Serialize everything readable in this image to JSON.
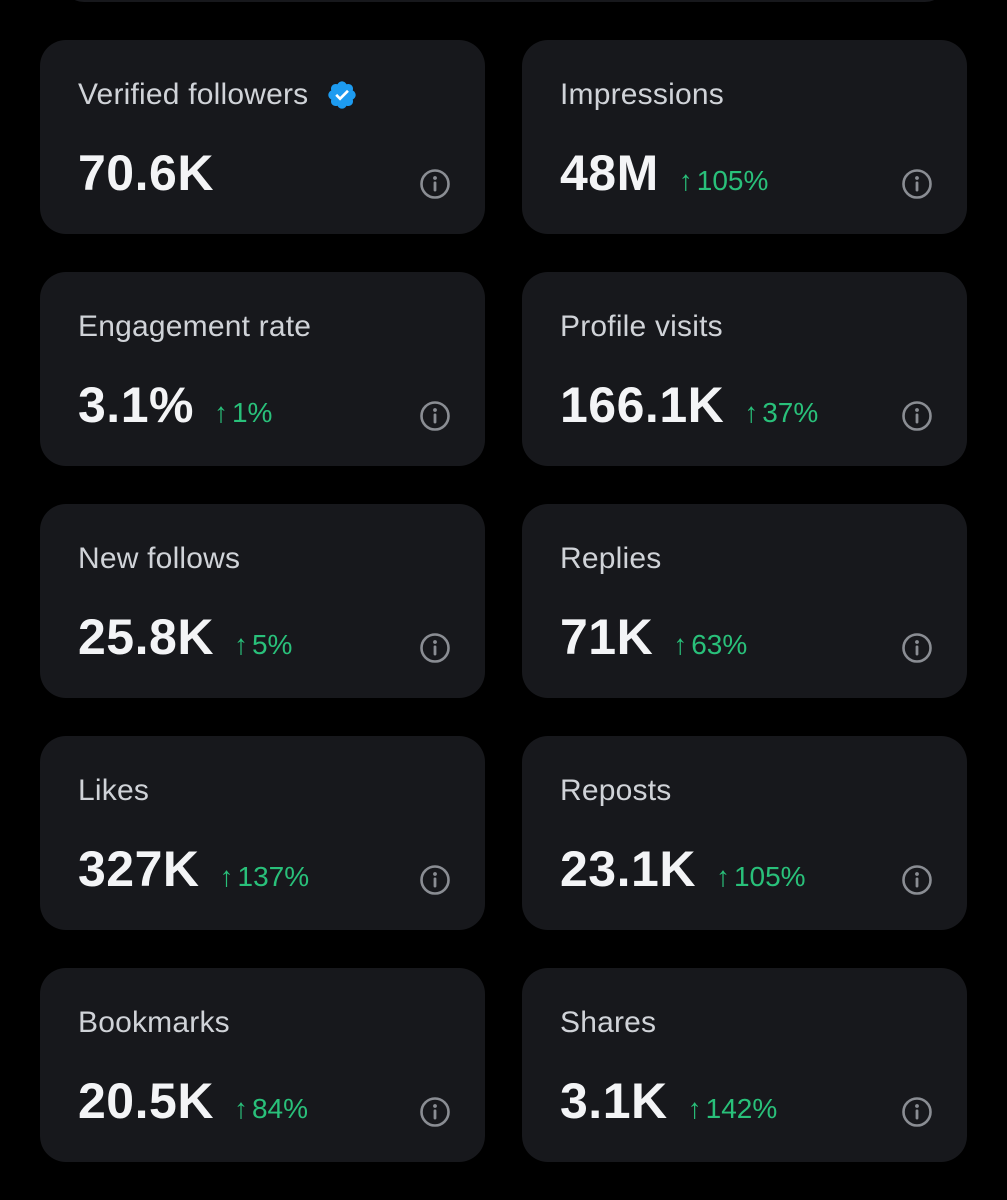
{
  "colors": {
    "background": "#000000",
    "card": "#17181c",
    "label": "#d0d3d8",
    "value": "#f3f4f6",
    "positive": "#29c07a",
    "verified": "#1d9bf0",
    "info_icon": "#8a8d93"
  },
  "metrics": [
    {
      "label": "Verified followers",
      "value": "70.6K",
      "change": "",
      "icon": "verified-badge-icon"
    },
    {
      "label": "Impressions",
      "value": "48M",
      "change": "105%"
    },
    {
      "label": "Engagement rate",
      "value": "3.1%",
      "change": "1%"
    },
    {
      "label": "Profile visits",
      "value": "166.1K",
      "change": "37%"
    },
    {
      "label": "New follows",
      "value": "25.8K",
      "change": "5%"
    },
    {
      "label": "Replies",
      "value": "71K",
      "change": "63%"
    },
    {
      "label": "Likes",
      "value": "327K",
      "change": "137%"
    },
    {
      "label": "Reposts",
      "value": "23.1K",
      "change": "105%"
    },
    {
      "label": "Bookmarks",
      "value": "20.5K",
      "change": "84%"
    },
    {
      "label": "Shares",
      "value": "3.1K",
      "change": "142%"
    }
  ],
  "change_arrow": "↑"
}
